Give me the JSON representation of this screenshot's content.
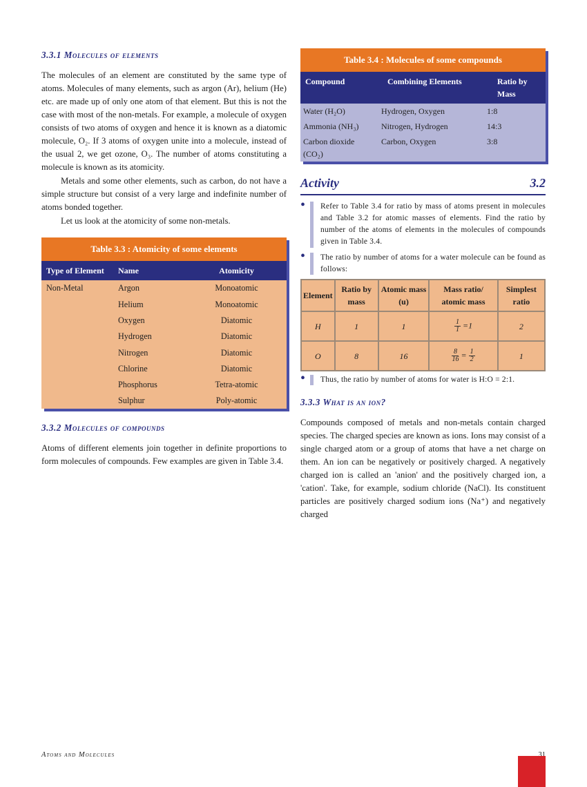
{
  "s331": {
    "title": "Molecules of elements",
    "num": "3.3.1",
    "p1": "The molecules of an element are constituted by the same type of atoms. Molecules of many elements, such as argon (Ar), helium (He) etc. are made up of only one atom of that element. But this is not the case with most of the non-metals. For example, a molecule of oxygen consists of two atoms of oxygen and hence it is known as a diatomic molecule, O₂. If 3 atoms of oxygen unite into a molecule, instead of the usual 2, we get ozone, O₃. The number of atoms constituting a molecule is known as its atomicity.",
    "p2": "Metals and some other elements, such as carbon, do not have a simple structure but consist of a very large and indefinite number of atoms bonded together.",
    "p3": "Let us look at the atomicity of some non-metals."
  },
  "t33": {
    "title": "Table 3.3 : Atomicity of some elements",
    "h": [
      "Type of Element",
      "Name",
      "Atomicity"
    ],
    "rows": [
      [
        "Non-Metal",
        "Argon",
        "Monoatomic"
      ],
      [
        "",
        "Helium",
        "Monoatomic"
      ],
      [
        "",
        "Oxygen",
        "Diatomic"
      ],
      [
        "",
        "Hydrogen",
        "Diatomic"
      ],
      [
        "",
        "Nitrogen",
        "Diatomic"
      ],
      [
        "",
        "Chlorine",
        "Diatomic"
      ],
      [
        "",
        "Phosphorus",
        "Tetra-atomic"
      ],
      [
        "",
        "Sulphur",
        "Poly-atomic"
      ]
    ]
  },
  "s332": {
    "num": "3.3.2",
    "title": "Molecules of compounds",
    "p1": "Atoms of different elements join together in definite proportions to form molecules of compounds. Few examples are given in Table 3.4."
  },
  "t34": {
    "title": "Table 3.4 : Molecules of some compounds",
    "h": [
      "Compound",
      "Combining Elements",
      "Ratio by Mass"
    ],
    "rows": [
      [
        "Water (H₂O)",
        "Hydrogen, Oxygen",
        "1:8"
      ],
      [
        "Ammonia (NH₃)",
        "Nitrogen, Hydrogen",
        "14:3"
      ],
      [
        "Carbon dioxide (CO₂)",
        "Carbon, Oxygen",
        "3:8"
      ]
    ]
  },
  "activity": {
    "label": "Activity",
    "num": "3.2",
    "i1": "Refer to Table 3.4 for ratio by mass of atoms present in molecules and Table 3.2 for atomic masses of elements. Find the ratio by number of the atoms of elements in the molecules of compounds given in Table 3.4.",
    "i2": "The ratio by number of atoms for a water molecule can be found as follows:",
    "i3": "Thus, the ratio by number of atoms for water is H:O = 2:1."
  },
  "tact": {
    "h": [
      "Element",
      "Ratio by mass",
      "Atomic mass (u)",
      "Mass ratio/ atomic mass",
      "Simplest ratio"
    ],
    "rows": [
      [
        "H",
        "1",
        "1",
        "",
        "2"
      ],
      [
        "O",
        "8",
        "16",
        "",
        "1"
      ]
    ]
  },
  "s333": {
    "num": "3.3.3",
    "title": "What is an ion?",
    "p1": "Compounds composed of metals and non-metals contain charged species. The charged species are known as ions. Ions may consist of a single charged atom or a group of atoms that have a net charge on them. An ion can be negatively or positively charged. A negatively charged ion is called an 'anion' and the positively charged ion, a 'cation'. Take, for example, sodium chloride (NaCl). Its constituent particles are positively charged sodium ions (Na⁺) and negatively charged"
  },
  "footer": {
    "title": "Atoms and Molecules",
    "page": "31"
  }
}
